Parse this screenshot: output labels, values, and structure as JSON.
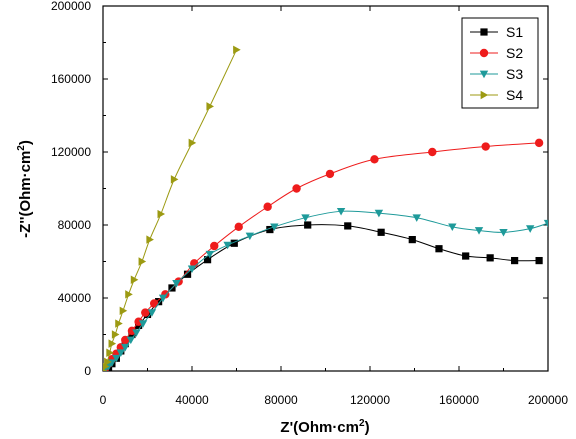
{
  "chart_data": {
    "type": "scatter",
    "title": "",
    "xlabel_main": "Z'(Ohm·cm",
    "xlabel_sup": "2",
    "xlabel_end": ")",
    "ylabel_main": "-Z''(Ohm·cm",
    "ylabel_sup": "2",
    "ylabel_end": ")",
    "xlim": [
      0,
      200000
    ],
    "ylim": [
      0,
      200000
    ],
    "xticks": [
      0,
      40000,
      80000,
      120000,
      160000,
      200000
    ],
    "yticks": [
      0,
      40000,
      80000,
      120000,
      160000,
      200000
    ],
    "xtick_labels": [
      "0",
      "40000",
      "80000",
      "120000",
      "160000",
      "200000"
    ],
    "ytick_labels": [
      "0",
      "40000",
      "80000",
      "120000",
      "160000",
      "200000"
    ],
    "legend_position": "top-right",
    "grid": false,
    "series": [
      {
        "name": "S1",
        "color": "#000000",
        "marker": "square",
        "x": [
          0,
          1000,
          2500,
          4000,
          6000,
          8000,
          10000,
          13000,
          16000,
          20000,
          25000,
          31000,
          38000,
          47000,
          59000,
          75000,
          92000,
          110000,
          125000,
          139000,
          151000,
          163000,
          174000,
          185000,
          196000
        ],
        "y": [
          0,
          500,
          1500,
          4000,
          7000,
          11000,
          15000,
          20000,
          25000,
          31000,
          38000,
          45500,
          53000,
          61000,
          70000,
          77500,
          80000,
          79500,
          76000,
          72000,
          67000,
          63000,
          62000,
          60500,
          60500
        ]
      },
      {
        "name": "S2",
        "color": "#ee1c1c",
        "marker": "circle",
        "x": [
          0,
          1000,
          2500,
          4000,
          6000,
          8000,
          10000,
          13000,
          16000,
          19000,
          23000,
          28000,
          34000,
          41000,
          50000,
          61000,
          74000,
          87000,
          102000,
          122000,
          148000,
          172000,
          196000
        ],
        "y": [
          0,
          1500,
          4000,
          6500,
          9500,
          13000,
          17000,
          22000,
          27000,
          32000,
          37000,
          42000,
          49000,
          59000,
          68500,
          79000,
          90000,
          100000,
          108000,
          116000,
          120000,
          123000,
          125000
        ]
      },
      {
        "name": "S3",
        "color": "#1e9a9a",
        "marker": "triangle-down",
        "x": [
          0,
          1000,
          2500,
          4000,
          6000,
          8000,
          10000,
          12500,
          15000,
          18000,
          22000,
          27000,
          33000,
          40000,
          48000,
          56000,
          66000,
          77000,
          91000,
          107000,
          124000,
          141000,
          157000,
          169000,
          180000,
          192000,
          200000
        ],
        "y": [
          0,
          1000,
          2500,
          4500,
          7000,
          10000,
          13000,
          17000,
          21000,
          26000,
          32000,
          40000,
          48000,
          56000,
          64000,
          69000,
          74000,
          79000,
          84000,
          87500,
          86500,
          84000,
          79000,
          77000,
          76000,
          78000,
          81000
        ]
      },
      {
        "name": "S4",
        "color": "#9c9a12",
        "marker": "triangle-right",
        "x": [
          0,
          1000,
          2000,
          3000,
          4000,
          5500,
          7000,
          9000,
          11500,
          14000,
          17500,
          21000,
          26000,
          32000,
          40000,
          48000,
          60000
        ],
        "y": [
          0,
          2500,
          5000,
          10000,
          15000,
          20000,
          26000,
          33000,
          42000,
          50000,
          60000,
          72000,
          86000,
          105000,
          125000,
          145000,
          176000
        ]
      }
    ]
  }
}
